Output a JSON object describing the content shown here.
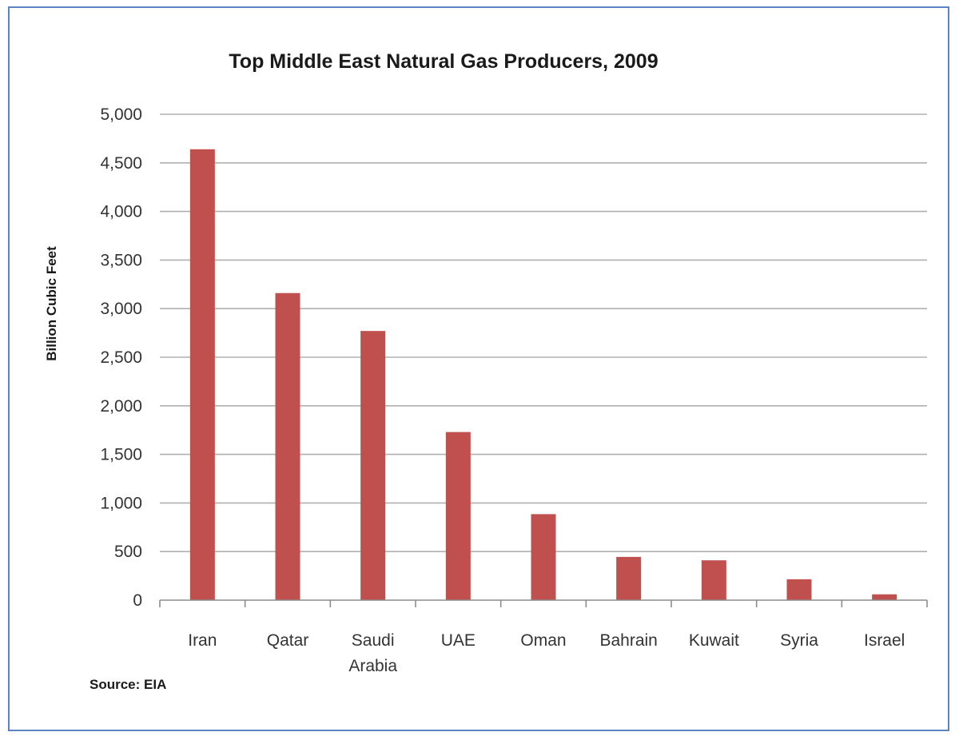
{
  "chart_data": {
    "type": "bar",
    "title": "Top Middle East Natural Gas Producers, 2009",
    "xlabel": "",
    "ylabel": "Billion Cubic Feet",
    "categories": [
      [
        "Iran"
      ],
      [
        "Qatar"
      ],
      [
        "Saudi",
        "Arabia"
      ],
      [
        "UAE"
      ],
      [
        "Oman"
      ],
      [
        "Bahrain"
      ],
      [
        "Kuwait"
      ],
      [
        "Syria"
      ],
      [
        "Israel"
      ]
    ],
    "values": [
      4640,
      3160,
      2770,
      1730,
      885,
      445,
      410,
      215,
      60
    ],
    "ylim": [
      0,
      5000
    ],
    "yticks": [
      0,
      500,
      1000,
      1500,
      2000,
      2500,
      3000,
      3500,
      4000,
      4500,
      5000
    ],
    "ytick_labels": [
      "0",
      "500",
      "1,000",
      "1,500",
      "2,000",
      "2,500",
      "3,000",
      "3,500",
      "4,000",
      "4,500",
      "5,000"
    ],
    "grid": true,
    "legend": "none",
    "bar_color": "#c0504d",
    "source": "Source: EIA"
  }
}
